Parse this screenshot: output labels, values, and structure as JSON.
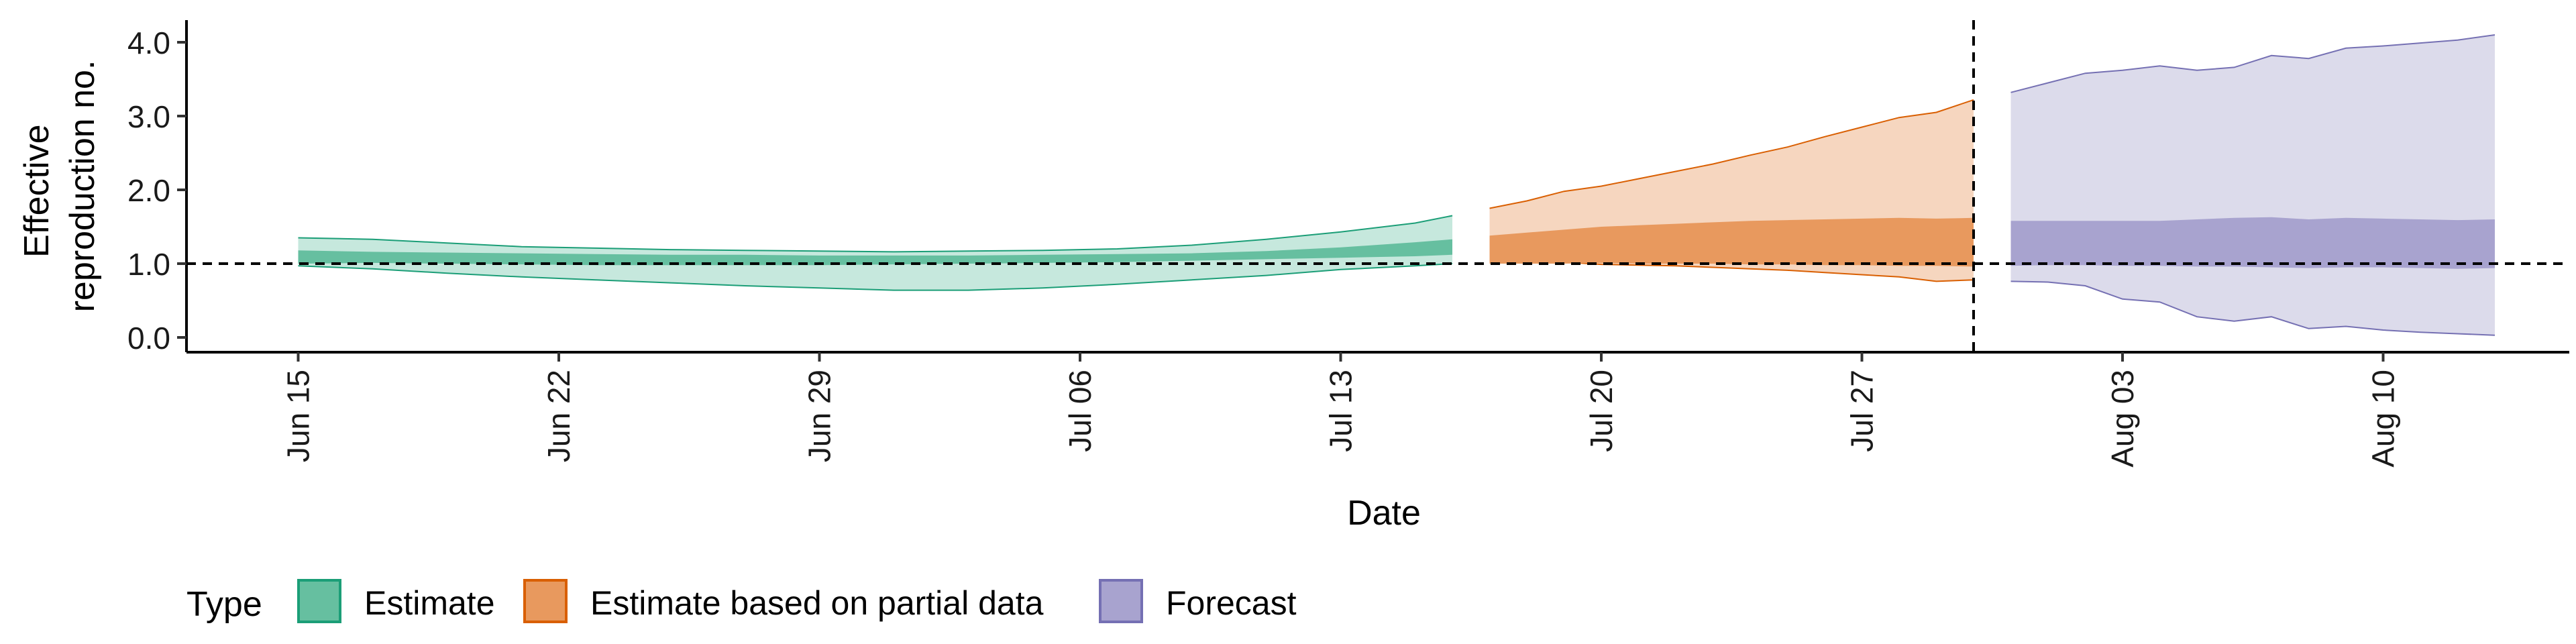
{
  "chart_data": {
    "type": "area",
    "xlabel": "Date",
    "ylabel_lines": [
      "Effective",
      "reproduction no."
    ],
    "ylim": [
      -0.2,
      4.3
    ],
    "yticks": [
      0.0,
      1.0,
      2.0,
      3.0,
      4.0
    ],
    "ytick_labels": [
      "0.0",
      "1.0",
      "2.0",
      "3.0",
      "4.0"
    ],
    "xlim": [
      "2020-06-12",
      "2020-08-15"
    ],
    "xticks": [
      "2020-06-15",
      "2020-06-22",
      "2020-06-29",
      "2020-07-06",
      "2020-07-13",
      "2020-07-20",
      "2020-07-27",
      "2020-08-03",
      "2020-08-10"
    ],
    "xtick_labels": [
      "Jun 15",
      "Jun 22",
      "Jun 29",
      "Jul 06",
      "Jul 13",
      "Jul 20",
      "Jul 27",
      "Aug 03",
      "Aug 10"
    ],
    "reference_hline": 1.0,
    "reference_vline": "2020-07-30",
    "legend": {
      "title": "Type",
      "position": "bottom",
      "entries": [
        "Estimate",
        "Estimate based on partial data",
        "Forecast"
      ]
    },
    "series": [
      {
        "name": "Estimate",
        "fill_outer": "#c6e8dd",
        "fill_inner": "#66bfa0",
        "stroke": "#1b9e77",
        "x": [
          "2020-06-15",
          "2020-06-17",
          "2020-06-19",
          "2020-06-21",
          "2020-06-23",
          "2020-06-25",
          "2020-06-27",
          "2020-06-29",
          "2020-07-01",
          "2020-07-03",
          "2020-07-05",
          "2020-07-07",
          "2020-07-09",
          "2020-07-11",
          "2020-07-13",
          "2020-07-15",
          "2020-07-16"
        ],
        "outer_upper": [
          1.35,
          1.33,
          1.28,
          1.23,
          1.21,
          1.19,
          1.18,
          1.17,
          1.16,
          1.17,
          1.18,
          1.2,
          1.25,
          1.33,
          1.43,
          1.55,
          1.65
        ],
        "inner_upper": [
          1.18,
          1.16,
          1.15,
          1.14,
          1.13,
          1.12,
          1.12,
          1.11,
          1.11,
          1.11,
          1.12,
          1.13,
          1.14,
          1.17,
          1.22,
          1.29,
          1.33
        ],
        "inner_lower": [
          1.0,
          1.01,
          1.0,
          0.99,
          0.98,
          0.98,
          0.98,
          0.98,
          0.99,
          1.0,
          1.01,
          1.02,
          1.04,
          1.06,
          1.08,
          1.1,
          1.12
        ],
        "outer_lower": [
          0.97,
          0.93,
          0.87,
          0.82,
          0.78,
          0.74,
          0.7,
          0.67,
          0.64,
          0.64,
          0.67,
          0.72,
          0.78,
          0.84,
          0.92,
          0.97,
          1.0
        ]
      },
      {
        "name": "Estimate based on partial data",
        "fill_outer": "#f6d6bf",
        "fill_inner": "#e8995e",
        "stroke": "#d95f02",
        "x": [
          "2020-07-17",
          "2020-07-18",
          "2020-07-19",
          "2020-07-20",
          "2020-07-21",
          "2020-07-22",
          "2020-07-23",
          "2020-07-24",
          "2020-07-25",
          "2020-07-26",
          "2020-07-27",
          "2020-07-28",
          "2020-07-29",
          "2020-07-30"
        ],
        "outer_upper": [
          1.75,
          1.85,
          1.98,
          2.05,
          2.15,
          2.25,
          2.35,
          2.47,
          2.58,
          2.72,
          2.85,
          2.98,
          3.05,
          3.22
        ],
        "inner_upper": [
          1.38,
          1.42,
          1.46,
          1.5,
          1.52,
          1.54,
          1.56,
          1.58,
          1.59,
          1.6,
          1.61,
          1.62,
          1.61,
          1.62
        ],
        "inner_lower": [
          1.0,
          1.0,
          1.0,
          1.01,
          1.0,
          1.0,
          1.0,
          0.99,
          0.99,
          0.98,
          0.98,
          0.97,
          0.97,
          0.96
        ],
        "outer_lower": [
          1.05,
          1.03,
          1.02,
          0.99,
          0.98,
          0.97,
          0.95,
          0.93,
          0.91,
          0.88,
          0.85,
          0.82,
          0.76,
          0.78
        ]
      },
      {
        "name": "Forecast",
        "fill_outer": "#dcdbeb",
        "fill_inner": "#a8a3cf",
        "stroke": "#7570b3",
        "x": [
          "2020-07-31",
          "2020-08-01",
          "2020-08-02",
          "2020-08-03",
          "2020-08-04",
          "2020-08-05",
          "2020-08-06",
          "2020-08-07",
          "2020-08-08",
          "2020-08-09",
          "2020-08-10",
          "2020-08-11",
          "2020-08-12",
          "2020-08-13"
        ],
        "outer_upper": [
          3.32,
          3.45,
          3.58,
          3.62,
          3.68,
          3.62,
          3.66,
          3.82,
          3.78,
          3.92,
          3.95,
          3.99,
          4.03,
          4.1
        ],
        "inner_upper": [
          1.58,
          1.58,
          1.58,
          1.58,
          1.58,
          1.6,
          1.62,
          1.63,
          1.6,
          1.62,
          1.61,
          1.6,
          1.59,
          1.6
        ],
        "inner_lower": [
          0.97,
          0.98,
          0.98,
          0.97,
          0.97,
          0.96,
          0.96,
          0.95,
          0.94,
          0.95,
          0.95,
          0.94,
          0.93,
          0.94
        ],
        "outer_lower": [
          0.76,
          0.75,
          0.7,
          0.52,
          0.48,
          0.28,
          0.22,
          0.28,
          0.12,
          0.15,
          0.1,
          0.07,
          0.05,
          0.03
        ]
      }
    ]
  }
}
